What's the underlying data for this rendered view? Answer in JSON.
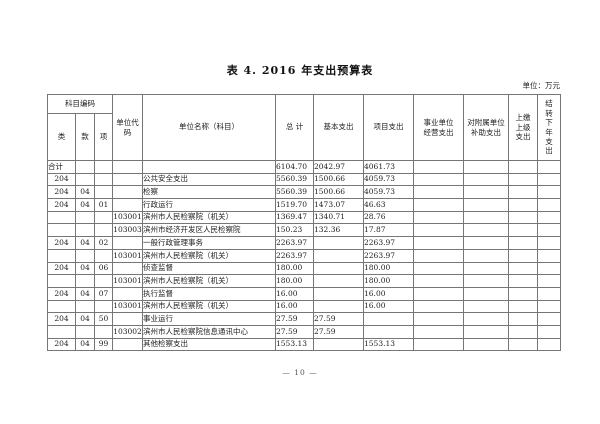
{
  "page": {
    "title": "表 4. 2016 年支出预算表",
    "unit_note": "单位：万元",
    "page_number": "— 10 —"
  },
  "table": {
    "header": {
      "subject_code_group": "科目编码",
      "cols": [
        "类",
        "款",
        "项"
      ],
      "unit_code": "单位代码",
      "unit_name": "单位名称（科目）",
      "total": "总 计",
      "basic": "基本支出",
      "project": "项目支出",
      "business_op": "事业单位经营支出",
      "subsidy": "对附属单位补助支出",
      "upper": "上缴上级支出",
      "carryover": "结转下年支出"
    },
    "rows": [
      {
        "lei": "合计",
        "kuan": "",
        "xiang": "",
        "code": "",
        "name": "",
        "total": "6104.70",
        "basic": "2042.97",
        "project": "4061.73",
        "operate": "",
        "subsidy": "",
        "upper": "",
        "carry": "",
        "indent": 0,
        "lei_left": true
      },
      {
        "lei": "204",
        "kuan": "",
        "xiang": "",
        "code": "",
        "name": "公共安全支出",
        "total": "5560.39",
        "basic": "1500.66",
        "project": "4059.73",
        "operate": "",
        "subsidy": "",
        "upper": "",
        "carry": "",
        "indent": 1
      },
      {
        "lei": "204",
        "kuan": "04",
        "xiang": "",
        "code": "",
        "name": "检察",
        "total": "5560.39",
        "basic": "1500.66",
        "project": "4059.73",
        "operate": "",
        "subsidy": "",
        "upper": "",
        "carry": "",
        "indent": 2
      },
      {
        "lei": "204",
        "kuan": "04",
        "xiang": "01",
        "code": "",
        "name": "行政运行",
        "total": "1519.70",
        "basic": "1473.07",
        "project": "46.63",
        "operate": "",
        "subsidy": "",
        "upper": "",
        "carry": "",
        "indent": 3
      },
      {
        "lei": "",
        "kuan": "",
        "xiang": "",
        "code": "103001",
        "name": "滨州市人民检察院（机关）",
        "total": "1369.47",
        "basic": "1340.71",
        "project": "28.76",
        "operate": "",
        "subsidy": "",
        "upper": "",
        "carry": "",
        "indent": 4
      },
      {
        "lei": "",
        "kuan": "",
        "xiang": "",
        "code": "103003",
        "name": "滨州市经济开发区人民检察院",
        "total": "150.23",
        "basic": "132.36",
        "project": "17.87",
        "operate": "",
        "subsidy": "",
        "upper": "",
        "carry": "",
        "indent": 4
      },
      {
        "lei": "204",
        "kuan": "04",
        "xiang": "02",
        "code": "",
        "name": "一般行政管理事务",
        "total": "2263.97",
        "basic": "",
        "project": "2263.97",
        "operate": "",
        "subsidy": "",
        "upper": "",
        "carry": "",
        "indent": 3
      },
      {
        "lei": "",
        "kuan": "",
        "xiang": "",
        "code": "103001",
        "name": "滨州市人民检察院（机关）",
        "total": "2263.97",
        "basic": "",
        "project": "2263.97",
        "operate": "",
        "subsidy": "",
        "upper": "",
        "carry": "",
        "indent": 4
      },
      {
        "lei": "204",
        "kuan": "04",
        "xiang": "06",
        "code": "",
        "name": "侦查监督",
        "total": "180.00",
        "basic": "",
        "project": "180.00",
        "operate": "",
        "subsidy": "",
        "upper": "",
        "carry": "",
        "indent": 3
      },
      {
        "lei": "",
        "kuan": "",
        "xiang": "",
        "code": "103001",
        "name": "滨州市人民检察院（机关）",
        "total": "180.00",
        "basic": "",
        "project": "180.00",
        "operate": "",
        "subsidy": "",
        "upper": "",
        "carry": "",
        "indent": 4
      },
      {
        "lei": "204",
        "kuan": "04",
        "xiang": "07",
        "code": "",
        "name": "执行监督",
        "total": "16.00",
        "basic": "",
        "project": "16.00",
        "operate": "",
        "subsidy": "",
        "upper": "",
        "carry": "",
        "indent": 3
      },
      {
        "lei": "",
        "kuan": "",
        "xiang": "",
        "code": "103001",
        "name": "滨州市人民检察院（机关）",
        "total": "16.00",
        "basic": "",
        "project": "16.00",
        "operate": "",
        "subsidy": "",
        "upper": "",
        "carry": "",
        "indent": 4
      },
      {
        "lei": "204",
        "kuan": "04",
        "xiang": "50",
        "code": "",
        "name": "事业运行",
        "total": "27.59",
        "basic": "27.59",
        "project": "",
        "operate": "",
        "subsidy": "",
        "upper": "",
        "carry": "",
        "indent": 3
      },
      {
        "lei": "",
        "kuan": "",
        "xiang": "",
        "code": "103002",
        "name": "滨州市人民检察院信息通讯中心",
        "total": "27.59",
        "basic": "27.59",
        "project": "",
        "operate": "",
        "subsidy": "",
        "upper": "",
        "carry": "",
        "indent": 4
      },
      {
        "lei": "204",
        "kuan": "04",
        "xiang": "99",
        "code": "",
        "name": "其他检察支出",
        "total": "1553.13",
        "basic": "",
        "project": "1553.13",
        "operate": "",
        "subsidy": "",
        "upper": "",
        "carry": "",
        "indent": 3
      }
    ]
  }
}
